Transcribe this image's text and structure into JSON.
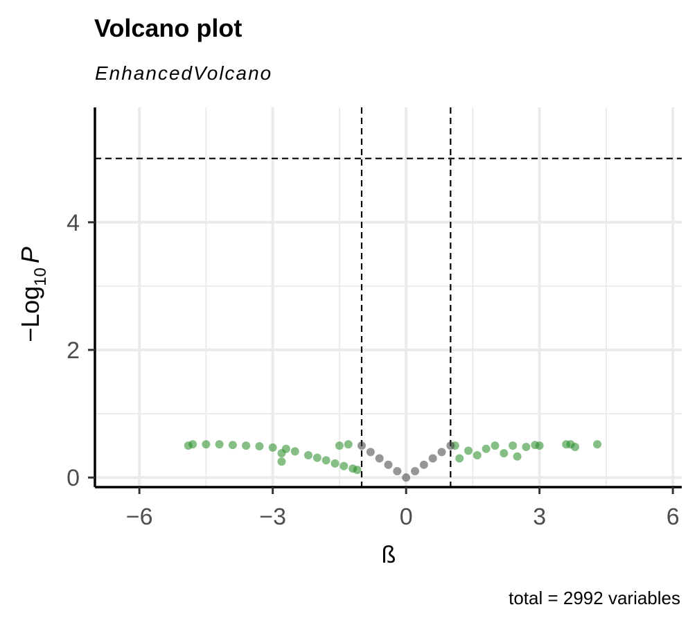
{
  "chart_data": {
    "type": "scatter",
    "title": "Volcano plot",
    "subtitle": "EnhancedVolcano",
    "caption": "total = 2992 variables",
    "xlabel": "ß",
    "ylabel": {
      "prefix": "−Log",
      "subscript": "10",
      "suffix": "P"
    },
    "xlim": [
      -7,
      6.2
    ],
    "ylim": [
      -0.15,
      5.8
    ],
    "x_ticks": [
      -6,
      -3,
      0,
      3,
      6
    ],
    "x_tick_labels": [
      "−6",
      "−3",
      "0",
      "3",
      "6"
    ],
    "y_ticks": [
      0,
      2,
      4
    ],
    "y_tick_labels": [
      "0",
      "2",
      "4"
    ],
    "grid": true,
    "cutoffs": {
      "fc_cutoff": [
        -1,
        1
      ],
      "p_cutoff_log10": 5
    },
    "series": [
      {
        "name": "",
        "color": "#228b22",
        "points": [
          [
            -4.9,
            0.5
          ],
          [
            -4.8,
            0.52
          ],
          [
            -4.5,
            0.52
          ],
          [
            -4.2,
            0.52
          ],
          [
            -3.9,
            0.51
          ],
          [
            -3.6,
            0.5
          ],
          [
            -3.3,
            0.49
          ],
          [
            -3.0,
            0.47
          ],
          [
            -2.8,
            0.38
          ],
          [
            -2.7,
            0.45
          ],
          [
            -2.5,
            0.41
          ],
          [
            -2.8,
            0.25
          ],
          [
            -2.2,
            0.35
          ],
          [
            -2.0,
            0.31
          ],
          [
            -1.8,
            0.27
          ],
          [
            -1.6,
            0.22
          ],
          [
            -1.4,
            0.18
          ],
          [
            -1.2,
            0.14
          ],
          [
            -1.1,
            0.12
          ],
          [
            -1.3,
            0.52
          ],
          [
            -1.5,
            0.5
          ],
          [
            1.1,
            0.5
          ],
          [
            1.2,
            0.3
          ],
          [
            1.4,
            0.42
          ],
          [
            1.6,
            0.35
          ],
          [
            1.8,
            0.45
          ],
          [
            2.0,
            0.5
          ],
          [
            2.2,
            0.38
          ],
          [
            2.4,
            0.5
          ],
          [
            2.5,
            0.33
          ],
          [
            2.7,
            0.48
          ],
          [
            2.9,
            0.51
          ],
          [
            3.0,
            0.5
          ],
          [
            3.6,
            0.52
          ],
          [
            3.7,
            0.52
          ],
          [
            3.8,
            0.48
          ],
          [
            4.3,
            0.52
          ]
        ]
      },
      {
        "name": "",
        "color": "#404040",
        "points": [
          [
            -1.0,
            0.5
          ],
          [
            -0.8,
            0.4
          ],
          [
            -0.6,
            0.3
          ],
          [
            -0.4,
            0.2
          ],
          [
            -0.2,
            0.1
          ],
          [
            0.0,
            0.0
          ],
          [
            0.2,
            0.1
          ],
          [
            0.4,
            0.2
          ],
          [
            0.6,
            0.3
          ],
          [
            0.8,
            0.4
          ],
          [
            1.0,
            0.5
          ]
        ]
      }
    ]
  }
}
